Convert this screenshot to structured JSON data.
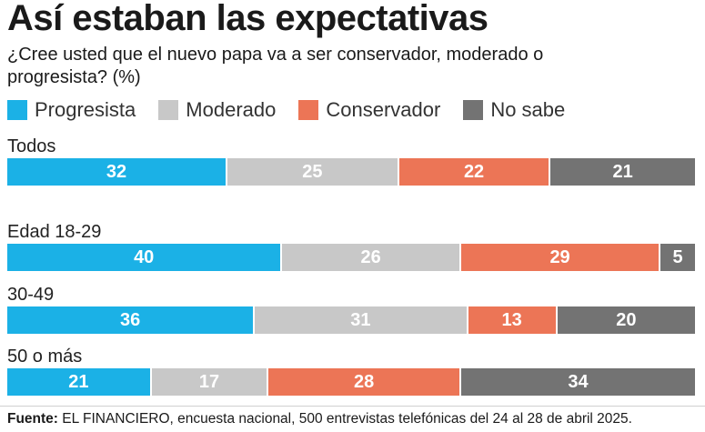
{
  "title": "Así estaban las expectativas",
  "subtitle": "¿Cree usted que el nuevo papa va a ser conservador, moderado o progresista? (%)",
  "legend": [
    {
      "label": "Progresista",
      "color": "#1bb1e6"
    },
    {
      "label": "Moderado",
      "color": "#c8c8c8"
    },
    {
      "label": "Conservador",
      "color": "#ec7556"
    },
    {
      "label": "No sabe",
      "color": "#737373"
    }
  ],
  "source": {
    "prefix": "Fuente:",
    "text": "EL FINANCIERO, encuesta nacional, 500 entrevistas telefónicas del 24 al 28 de abril 2025."
  },
  "chart_data": {
    "type": "bar",
    "stacked": true,
    "orientation": "horizontal",
    "normalized_to": 100,
    "categories": [
      "Todos",
      "Edad 18-29",
      "30-49",
      "50 o más"
    ],
    "series": [
      {
        "name": "Progresista",
        "color": "#1bb1e6",
        "values": [
          32,
          40,
          36,
          21
        ]
      },
      {
        "name": "Moderado",
        "color": "#c8c8c8",
        "values": [
          25,
          26,
          31,
          17
        ]
      },
      {
        "name": "Conservador",
        "color": "#ec7556",
        "values": [
          22,
          29,
          13,
          28
        ]
      },
      {
        "name": "No sabe",
        "color": "#737373",
        "values": [
          21,
          5,
          20,
          34
        ]
      }
    ],
    "data_labels": true,
    "grid": false,
    "legend_position": "top-left"
  }
}
